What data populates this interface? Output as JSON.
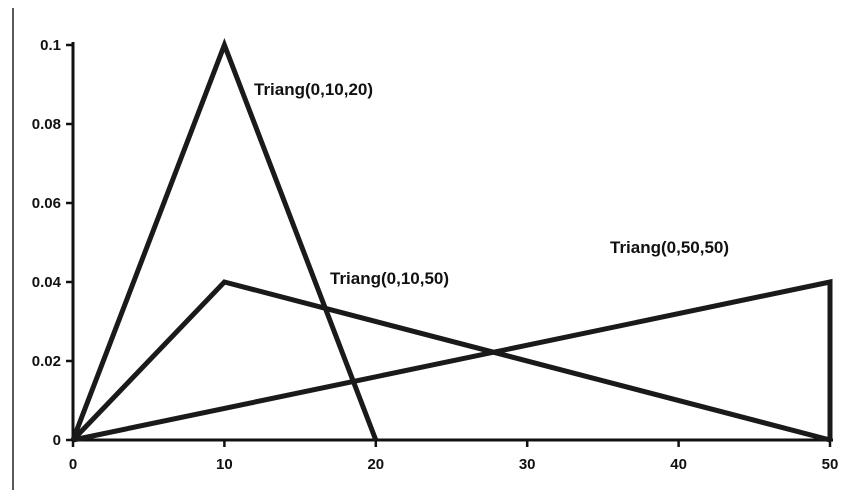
{
  "chart_data": {
    "type": "line",
    "title": "",
    "xlabel": "",
    "ylabel": "",
    "xlim": [
      0,
      50
    ],
    "ylim": [
      0,
      0.1
    ],
    "x_ticks": [
      0,
      10,
      20,
      30,
      40,
      50
    ],
    "x_tick_labels": [
      "0",
      "10",
      "20",
      "30",
      "40",
      "50"
    ],
    "y_ticks": [
      0,
      0.02,
      0.04,
      0.06,
      0.08,
      0.1
    ],
    "y_tick_labels": [
      "0",
      "0.02",
      "0.04",
      "0.06",
      "0.08",
      "0.1"
    ],
    "grid": false,
    "legend": "none",
    "series": [
      {
        "name": "Triang(0,10,20)",
        "x": [
          0,
          10,
          20
        ],
        "y": [
          0,
          0.1,
          0
        ]
      },
      {
        "name": "Triang(0,10,50)",
        "x": [
          0,
          10,
          50
        ],
        "y": [
          0,
          0.04,
          0
        ]
      },
      {
        "name": "Triang(0,50,50)",
        "x": [
          0,
          50,
          50
        ],
        "y": [
          0,
          0.04,
          0
        ]
      }
    ]
  }
}
